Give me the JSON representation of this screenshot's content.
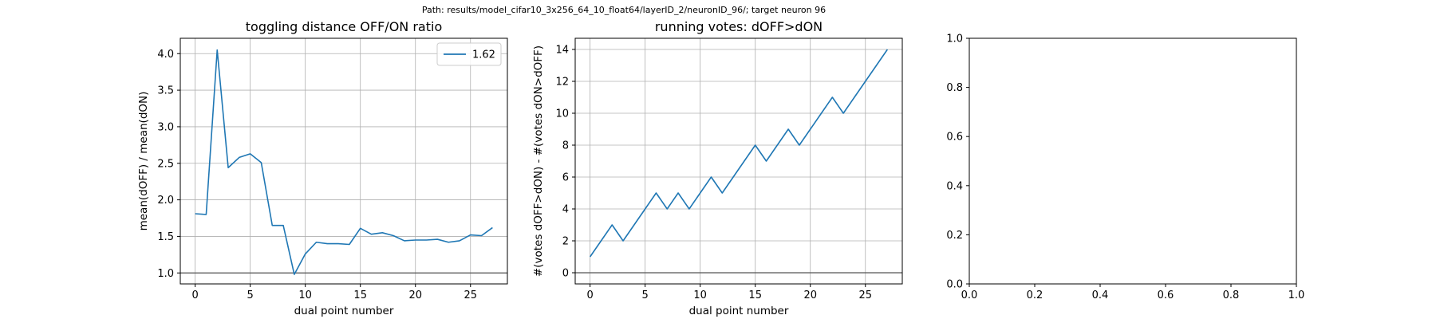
{
  "figure": {
    "suptitle": "Path: results/model_cifar10_3x256_64_10_float64/layerID_2/neuronID_96/; target neuron 96"
  },
  "chart_data": [
    {
      "type": "line",
      "title": "toggling distance OFF/ON ratio",
      "xlabel": "dual point number",
      "ylabel": "mean(dOFF) / mean(dON)",
      "xlim": [
        -1.35,
        28.35
      ],
      "ylim": [
        0.85,
        4.21
      ],
      "xticks": [
        0,
        5,
        10,
        15,
        20,
        25
      ],
      "yticks": [
        1.0,
        1.5,
        2.0,
        2.5,
        3.0,
        3.5,
        4.0
      ],
      "ytick_labels": [
        "1.0",
        "1.5",
        "2.0",
        "2.5",
        "3.0",
        "3.5",
        "4.0"
      ],
      "grid": true,
      "legend": {
        "position": "upper right",
        "entries": [
          "1.62"
        ]
      },
      "reference_line": {
        "y": 1.0,
        "color": "#555555"
      },
      "series": [
        {
          "name": "1.62",
          "color": "#1f77b4",
          "x": [
            0,
            1,
            2,
            3,
            4,
            5,
            6,
            7,
            8,
            9,
            10,
            11,
            12,
            13,
            14,
            15,
            16,
            17,
            18,
            19,
            20,
            21,
            22,
            23,
            24,
            25,
            26,
            27
          ],
          "y": [
            1.81,
            1.8,
            4.05,
            2.44,
            2.58,
            2.63,
            2.51,
            1.65,
            1.65,
            0.98,
            1.26,
            1.42,
            1.4,
            1.4,
            1.39,
            1.61,
            1.53,
            1.55,
            1.51,
            1.44,
            1.45,
            1.45,
            1.46,
            1.42,
            1.44,
            1.52,
            1.51,
            1.62
          ]
        }
      ]
    },
    {
      "type": "line",
      "title": "running votes: dOFF>dON",
      "xlabel": "dual point number",
      "ylabel": "#(votes dOFF>dON) - #(votes dON>dOFF)",
      "xlim": [
        -1.35,
        28.35
      ],
      "ylim": [
        -0.7,
        14.7
      ],
      "xticks": [
        0,
        5,
        10,
        15,
        20,
        25
      ],
      "yticks": [
        0,
        2,
        4,
        6,
        8,
        10,
        12,
        14
      ],
      "ytick_labels": [
        "0",
        "2",
        "4",
        "6",
        "8",
        "10",
        "12",
        "14"
      ],
      "grid": true,
      "reference_line": {
        "y": 0,
        "color": "#555555"
      },
      "series": [
        {
          "color": "#1f77b4",
          "x": [
            0,
            1,
            2,
            3,
            4,
            5,
            6,
            7,
            8,
            9,
            10,
            11,
            12,
            13,
            14,
            15,
            16,
            17,
            18,
            19,
            20,
            21,
            22,
            23,
            24,
            25,
            26,
            27
          ],
          "y": [
            1,
            2,
            3,
            2,
            3,
            4,
            5,
            4,
            5,
            4,
            5,
            6,
            5,
            6,
            7,
            8,
            7,
            8,
            9,
            8,
            9,
            10,
            11,
            10,
            11,
            12,
            13,
            14
          ]
        }
      ]
    },
    {
      "type": "line",
      "title": "",
      "xlim": [
        0,
        1
      ],
      "ylim": [
        0,
        1
      ],
      "xticks": [
        0.0,
        0.2,
        0.4,
        0.6,
        0.8,
        1.0
      ],
      "yticks": [
        0.0,
        0.2,
        0.4,
        0.6,
        0.8,
        1.0
      ],
      "xtick_labels": [
        "0.0",
        "0.2",
        "0.4",
        "0.6",
        "0.8",
        "1.0"
      ],
      "ytick_labels": [
        "0.0",
        "0.2",
        "0.4",
        "0.6",
        "0.8",
        "1.0"
      ],
      "grid": false,
      "series": []
    }
  ]
}
